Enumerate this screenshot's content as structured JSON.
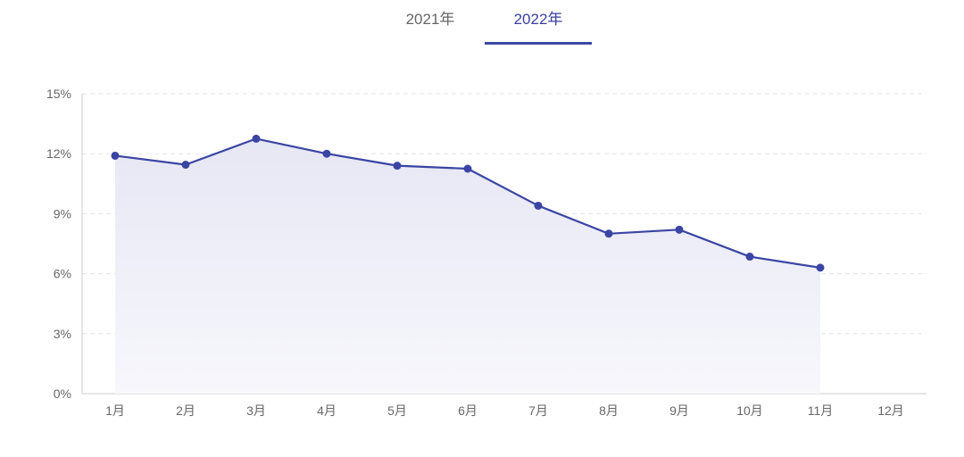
{
  "tabs": [
    {
      "label": "2021年",
      "active": false
    },
    {
      "label": "2022年",
      "active": true
    }
  ],
  "colors": {
    "accent": "#3a4aa8",
    "line": "#3a45a3",
    "area_top": "#e6e7f4",
    "grid": "#e5e5e5",
    "axis": "#cccccc",
    "tick_text": "#666666"
  },
  "chart_data": {
    "type": "area",
    "categories": [
      "1月",
      "2月",
      "3月",
      "4月",
      "5月",
      "6月",
      "7月",
      "8月",
      "9月",
      "10月",
      "11月",
      "12月"
    ],
    "series": [
      {
        "values": [
          11.9,
          11.45,
          12.75,
          12.0,
          11.4,
          11.25,
          9.4,
          8.0,
          8.2,
          6.85,
          6.3,
          null
        ]
      }
    ],
    "yticks": [
      "0%",
      "3%",
      "6%",
      "9%",
      "12%",
      "15%"
    ],
    "ylim": [
      0,
      15
    ],
    "grid": true,
    "marker": "circle"
  }
}
